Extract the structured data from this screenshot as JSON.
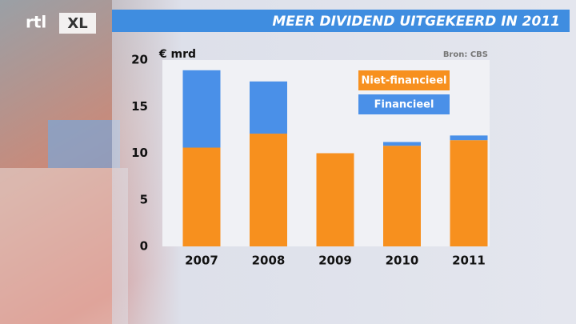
{
  "logo": {
    "main": "rtl",
    "suffix": "XL"
  },
  "chart_data": {
    "type": "stacked-bar",
    "title": "MEER DIVIDEND UITGEKEERD IN 2011",
    "y_label": "€ mrd",
    "source": "Bron: CBS",
    "categories": [
      "2007",
      "2008",
      "2009",
      "2010",
      "2011"
    ],
    "series": [
      {
        "name": "Niet-financieel",
        "color": "#f7901e",
        "values": [
          10.6,
          12.1,
          10.0,
          10.8,
          11.4
        ]
      },
      {
        "name": "Financieel",
        "color": "#4a90e8",
        "values": [
          8.3,
          5.6,
          0,
          0.4,
          0.5
        ]
      }
    ],
    "ylim": [
      0,
      20
    ],
    "yticks": [
      0,
      5,
      10,
      15,
      20
    ],
    "grid": false
  }
}
